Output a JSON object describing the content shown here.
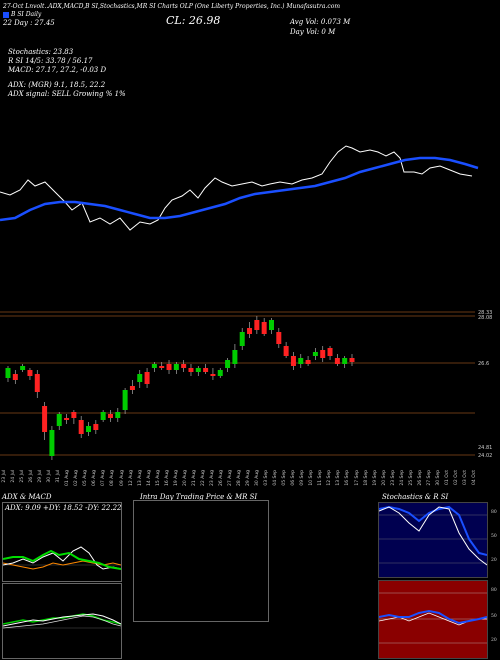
{
  "header": {
    "line1": "27-Oct Lnvolt..ADX,MACD,B  SI,Stochastics,MR  SI Charts OLP  (One Liberty Properties, Inc.) Munafasutra.com",
    "bollinger_legend": "B  SI  Daily",
    "bollinger_value": "22 Day : 27.45",
    "close_label": "CL: 26.98",
    "avg_vol": "Avg Vol: 0.073 M",
    "day_vol": "Day Vol: 0  M",
    "stochastics": "Stochastics: 23.83",
    "rsi": "R        SI 14/5: 33.78 / 56.17",
    "macd": "MACD: 27.17,  27.2,  -0.03 D",
    "adx": "ADX:              (MGR) 9.1,  18.5,  22.2",
    "adx_signal": "ADX  signal: SELL  Growing % 1%"
  },
  "price_axis": {
    "labels": [
      "28.33",
      "28.08",
      "26.6",
      "24.81",
      "24.02"
    ]
  },
  "dates": [
    "23 Jul",
    "24 Jul",
    "25 Jul",
    "26 Jul",
    "29 Jul",
    "30 Jul",
    "31 Jul",
    "01 Aug",
    "02 Aug",
    "05 Aug",
    "06 Aug",
    "07 Aug",
    "08 Aug",
    "09 Aug",
    "12 Aug",
    "13 Aug",
    "14 Aug",
    "15 Aug",
    "16 Aug",
    "19 Aug",
    "20 Aug",
    "21 Aug",
    "22 Aug",
    "23 Aug",
    "26 Aug",
    "27 Aug",
    "28 Aug",
    "29 Aug",
    "30 Aug",
    "03 Sep",
    "04 Sep",
    "05 Sep",
    "06 Sep",
    "09 Sep",
    "10 Sep",
    "11 Sep",
    "12 Sep",
    "13 Sep",
    "16 Sep",
    "17 Sep",
    "18 Sep",
    "19 Sep",
    "20 Sep",
    "23 Sep",
    "24 Sep",
    "25 Sep",
    "26 Sep",
    "27 Sep",
    "30 Sep",
    "01 Oct",
    "02 Oct",
    "03 Oct",
    "04 Oct"
  ],
  "panels": {
    "adx_macd_title": "ADX  & MACD",
    "adx_readout": "ADX: 9.09  +DY: 18.52  -DY: 22.22",
    "intraday_title": "Intra  Day Trading Price  & MR                SI",
    "stoch_title": "Stochastics & R            SI",
    "stoch_axis": [
      "80",
      "50",
      "20"
    ],
    "rsi_axis": [
      "80",
      "50",
      "20"
    ]
  },
  "colors": {
    "background": "#000000",
    "sma_blue": "#1a4fff",
    "price_white": "#ffffff",
    "candle_green": "#00cc00",
    "candle_red": "#ff2222",
    "grid_brown": "#8a4a1a",
    "stoch_bg": "#000050",
    "rsi_bg": "#8a0000"
  }
}
